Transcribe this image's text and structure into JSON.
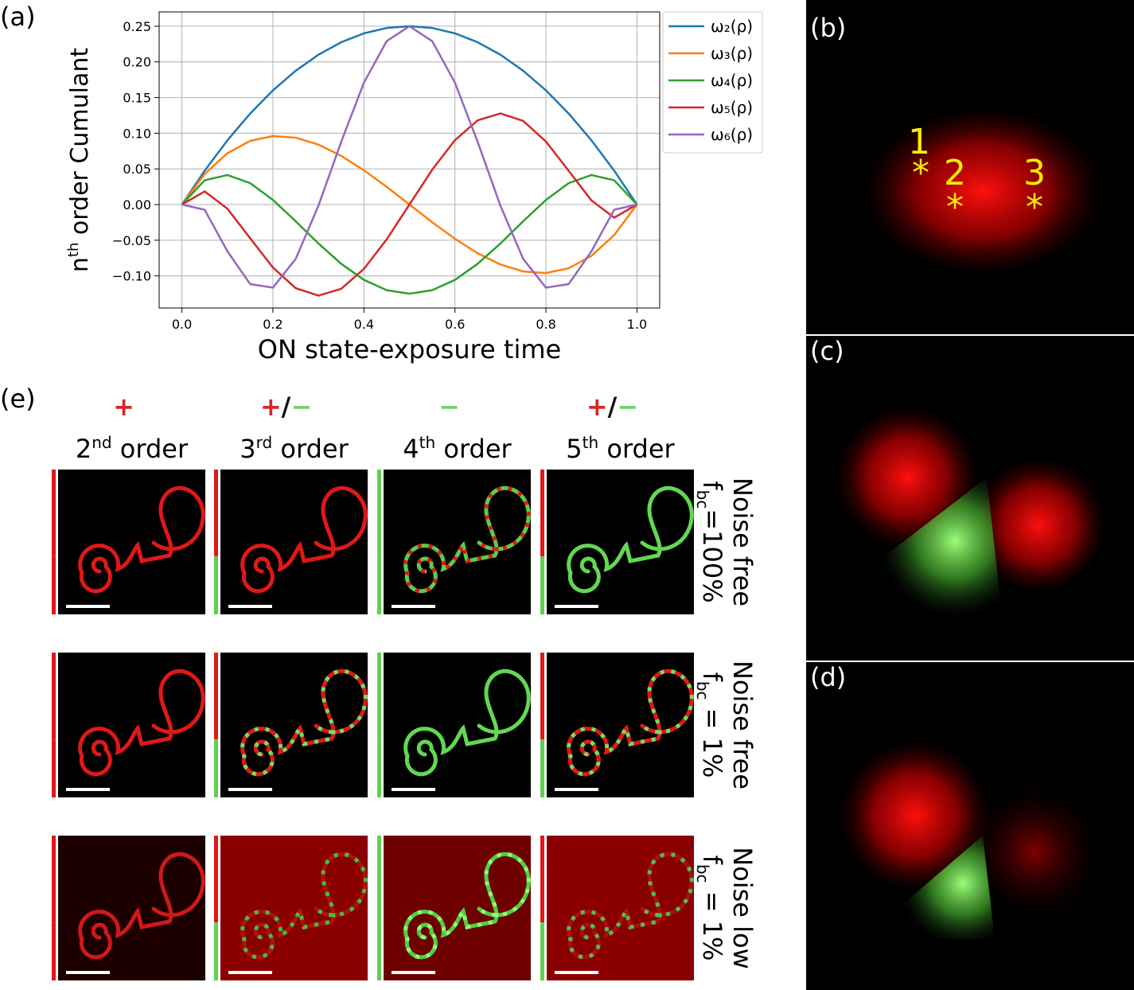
{
  "panels": [
    "(a)",
    "(b)",
    "(c)",
    "(d)",
    "(e)"
  ],
  "chart_data": {
    "type": "line",
    "xlabel": "ON state-exposure time",
    "ylabel": [
      "n",
      "th",
      " order Cumulant"
    ],
    "x": [
      0,
      0.05,
      0.1,
      0.15,
      0.2,
      0.25,
      0.3,
      0.35,
      0.4,
      0.45,
      0.5,
      0.55,
      0.6,
      0.65,
      0.7,
      0.75,
      0.8,
      0.85,
      0.9,
      0.95,
      1
    ],
    "series": [
      {
        "name": "ω₂(ρ)",
        "color": "#1f77b4",
        "values": [
          0,
          0.0475,
          0.09,
          0.1275,
          0.16,
          0.1875,
          0.21,
          0.2275,
          0.24,
          0.2475,
          0.25,
          0.2475,
          0.24,
          0.2275,
          0.21,
          0.1875,
          0.16,
          0.1275,
          0.09,
          0.0475,
          0
        ]
      },
      {
        "name": "ω₃(ρ)",
        "color": "#ff7f0e",
        "values": [
          0,
          0.0428,
          0.072,
          0.0893,
          0.096,
          0.0938,
          0.084,
          0.0683,
          0.048,
          0.0248,
          0,
          -0.0248,
          -0.048,
          -0.0683,
          -0.084,
          -0.0938,
          -0.096,
          -0.0893,
          -0.072,
          -0.0428,
          0
        ]
      },
      {
        "name": "ω₄(ρ)",
        "color": "#2ca02c",
        "values": [
          0,
          0.034,
          0.0414,
          0.03,
          0.0064,
          -0.0234,
          -0.0546,
          -0.083,
          -0.1056,
          -0.12,
          -0.125,
          -0.12,
          -0.1056,
          -0.083,
          -0.0546,
          -0.0234,
          0.0064,
          0.03,
          0.0414,
          0.034,
          0
        ]
      },
      {
        "name": "ω₅(ρ)",
        "color": "#d62728",
        "values": [
          0,
          0.0184,
          -0.0058,
          -0.0473,
          -0.0883,
          -0.1172,
          -0.1277,
          -0.1181,
          -0.0902,
          -0.0488,
          0,
          0.0488,
          0.0902,
          0.1181,
          0.1277,
          0.1172,
          0.0883,
          0.0473,
          0.0058,
          -0.0184,
          0
        ]
      },
      {
        "name": "ω₆(ρ)",
        "color": "#9467bd",
        "values": [
          0,
          -0.0073,
          -0.0655,
          -0.1115,
          -0.1165,
          -0.0762,
          -0.0017,
          0.0878,
          0.1709,
          0.2291,
          0.25,
          0.2291,
          0.1709,
          0.0878,
          -0.0017,
          -0.0762,
          -0.1165,
          -0.1115,
          -0.0655,
          -0.0073,
          0
        ]
      }
    ],
    "xlim": [
      -0.05,
      1.05
    ],
    "ylim": [
      -0.145,
      0.27
    ],
    "xticks": [
      {
        "value": 0,
        "label": "0.0"
      },
      {
        "value": 0.2,
        "label": "0.2"
      },
      {
        "value": 0.4,
        "label": "0.4"
      },
      {
        "value": 0.6,
        "label": "0.6"
      },
      {
        "value": 0.8,
        "label": "0.8"
      },
      {
        "value": 1,
        "label": "1.0"
      }
    ],
    "yticks": [
      {
        "value": -0.1,
        "label": "−0.10"
      },
      {
        "value": -0.05,
        "label": "−0.05"
      },
      {
        "value": 0,
        "label": "0.00"
      },
      0.05,
      {
        "value": 0.1,
        "label": "0.10"
      },
      0.15,
      {
        "value": 0.2,
        "label": "0.20"
      },
      0.25
    ],
    "grid": true,
    "legend": "outside-right"
  },
  "spots": [
    {
      "label": "1",
      "marker": "*"
    },
    {
      "label": "2",
      "marker": "*"
    },
    {
      "label": "3",
      "marker": "*"
    }
  ],
  "panel_e": {
    "columns": [
      {
        "sign": [
          {
            "text": "+",
            "color": "#d62728"
          }
        ],
        "order": [
          "2",
          "nd",
          " order"
        ]
      },
      {
        "sign": [
          {
            "text": "+",
            "color": "#d62728"
          },
          {
            "text": "/",
            "color": "#111111"
          },
          {
            "text": "−",
            "color": "#6cd66c"
          }
        ],
        "order": [
          "3",
          "rd",
          " order"
        ]
      },
      {
        "sign": [
          {
            "text": "−",
            "color": "#6cd66c"
          }
        ],
        "order": [
          "4",
          "th",
          " order"
        ]
      },
      {
        "sign": [
          {
            "text": "+",
            "color": "#d62728"
          },
          {
            "text": "/",
            "color": "#111111"
          },
          {
            "text": "−",
            "color": "#6cd66c"
          }
        ],
        "order": [
          "5",
          "th",
          " order"
        ]
      }
    ],
    "rows": [
      {
        "line1": "Noise free",
        "line2": [
          "f",
          "bc",
          "=100%"
        ]
      },
      {
        "line1": "Noise free",
        "line2": [
          "f",
          "bc",
          " = 1%"
        ]
      },
      {
        "line1": "Noise low",
        "line2": [
          "f",
          "bc",
          " = 1%"
        ]
      }
    ]
  }
}
